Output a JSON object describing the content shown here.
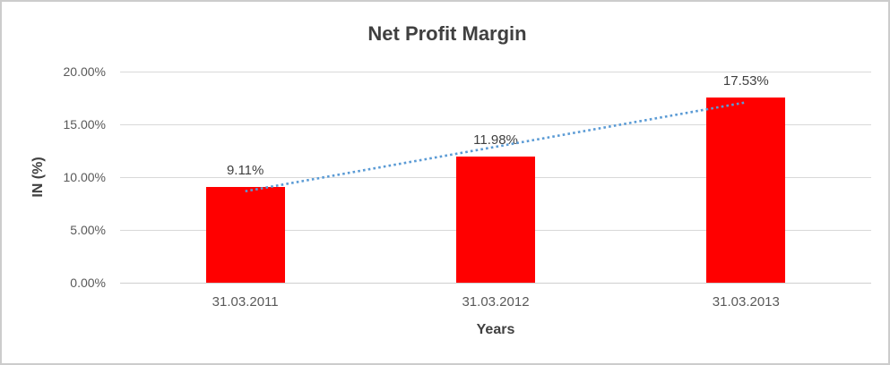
{
  "chart_data": {
    "type": "bar",
    "title": "Net Profit Margin",
    "xlabel": "Years",
    "ylabel": "IN (%)",
    "categories": [
      "31.03.2011",
      "31.03.2012",
      "31.03.2013"
    ],
    "values": [
      9.11,
      11.98,
      17.53
    ],
    "data_labels": [
      "9.11%",
      "11.98%",
      "17.53%"
    ],
    "ylim": [
      0,
      20
    ],
    "yticks": [
      {
        "value": 0,
        "label": "0.00%"
      },
      {
        "value": 5,
        "label": "5.00%"
      },
      {
        "value": 10,
        "label": "10.00%"
      },
      {
        "value": 15,
        "label": "15.00%"
      },
      {
        "value": 20,
        "label": "20.00%"
      }
    ],
    "grid": "horizontal",
    "legend": "none",
    "trendline": {
      "type": "linear",
      "style": "dotted"
    },
    "colors": {
      "bar": "#ff0000",
      "trendline": "#5b9bd5",
      "gridline": "#d9d9d9",
      "axis_line": "#cfcfcf",
      "title_text": "#404040",
      "tick_text": "#595959",
      "border": "#cccccc"
    }
  }
}
